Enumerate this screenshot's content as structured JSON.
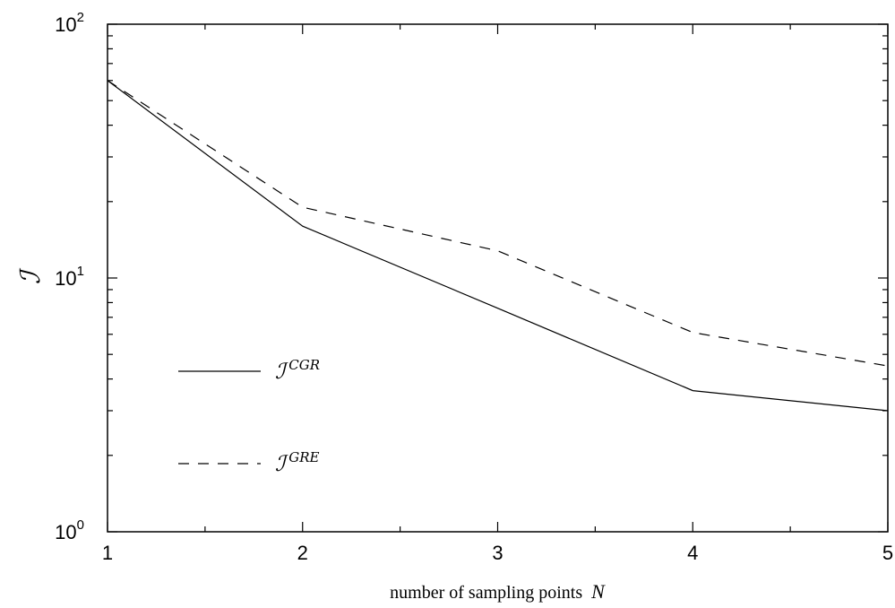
{
  "chart_data": {
    "type": "line",
    "xlabel": "number of sampling points",
    "xlabel_var": "N",
    "ylabel": "ℐ",
    "y_scale": "log",
    "xlim": [
      1,
      5
    ],
    "ylim": [
      1,
      100
    ],
    "grid": false,
    "legend_position": "left-middle",
    "x_ticks": [
      "1",
      "2",
      "3",
      "4",
      "5"
    ],
    "y_ticks": [
      {
        "value": 1,
        "base": "10",
        "exp": "0"
      },
      {
        "value": 10,
        "base": "10",
        "exp": "1"
      },
      {
        "value": 100,
        "base": "10",
        "exp": "2"
      }
    ],
    "series": [
      {
        "name_main": "ℐ",
        "name_sup": "CGR",
        "style": "solid",
        "x": [
          1,
          2,
          3,
          4,
          5
        ],
        "values": [
          60,
          16,
          7.6,
          3.6,
          3.0
        ]
      },
      {
        "name_main": "ℐ",
        "name_sup": "GRE",
        "style": "dashed",
        "x": [
          1,
          2,
          3,
          4,
          5
        ],
        "values": [
          60,
          19,
          12.8,
          6.1,
          4.5
        ]
      }
    ]
  }
}
